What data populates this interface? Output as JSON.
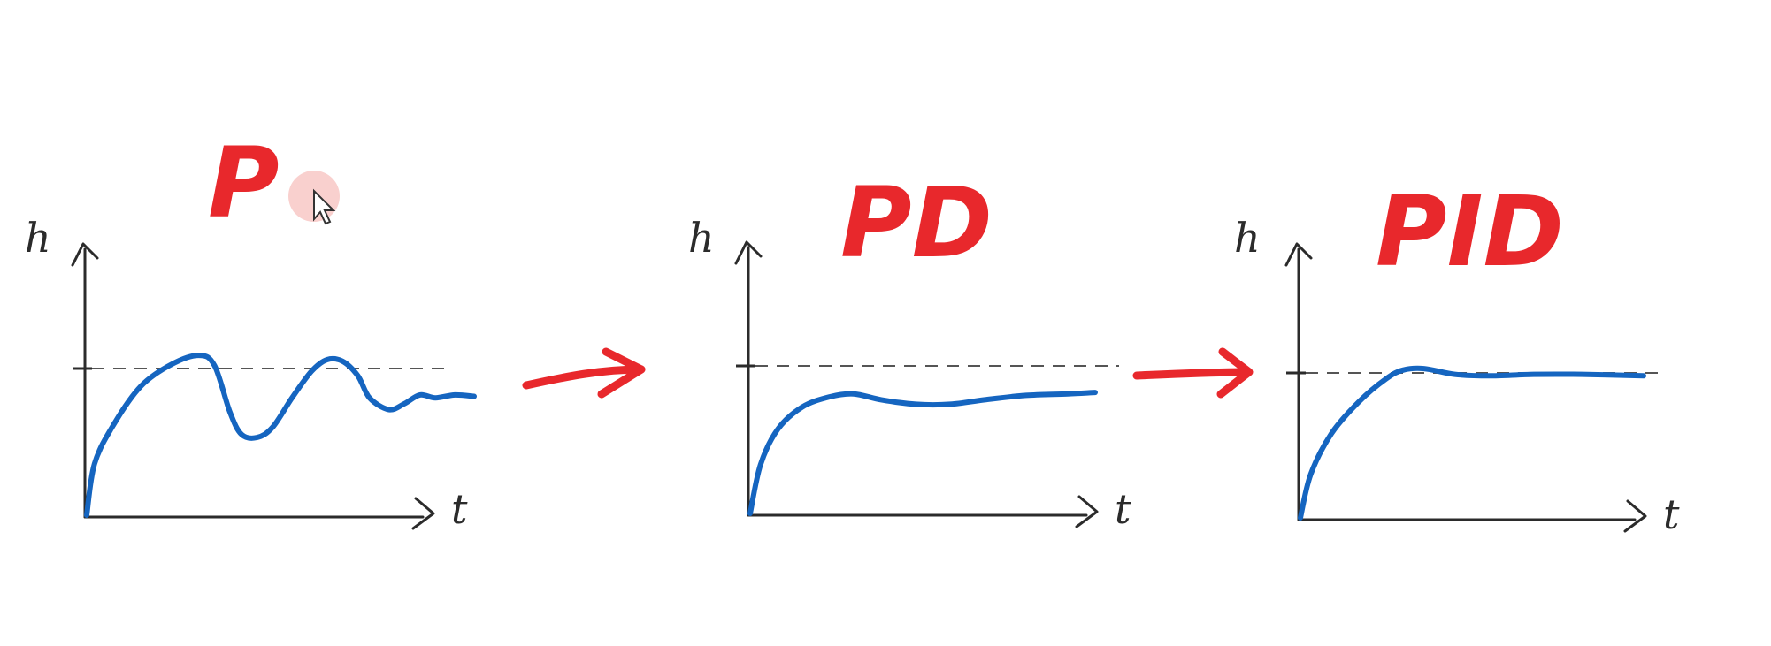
{
  "colors": {
    "title": "#e8282c",
    "curve": "#1565c0",
    "arrow": "#e8282c",
    "cursor_highlight": "#f4a9a6"
  },
  "panels": [
    {
      "title": "P",
      "ylabel": "h",
      "xlabel": "t",
      "response": [
        [
          0,
          0
        ],
        [
          0.02,
          0.35
        ],
        [
          0.07,
          0.62
        ],
        [
          0.14,
          0.88
        ],
        [
          0.22,
          1.03
        ],
        [
          0.29,
          1.09
        ],
        [
          0.33,
          1.02
        ],
        [
          0.37,
          0.7
        ],
        [
          0.4,
          0.55
        ],
        [
          0.44,
          0.53
        ],
        [
          0.48,
          0.6
        ],
        [
          0.53,
          0.8
        ],
        [
          0.58,
          0.98
        ],
        [
          0.62,
          1.06
        ],
        [
          0.66,
          1.05
        ],
        [
          0.7,
          0.95
        ],
        [
          0.73,
          0.8
        ],
        [
          0.78,
          0.72
        ],
        [
          0.82,
          0.76
        ],
        [
          0.86,
          0.82
        ],
        [
          0.9,
          0.8
        ],
        [
          0.95,
          0.82
        ],
        [
          1.0,
          0.81
        ]
      ]
    },
    {
      "title": "PD",
      "ylabel": "h",
      "xlabel": "t",
      "response": [
        [
          0,
          0
        ],
        [
          0.03,
          0.33
        ],
        [
          0.08,
          0.57
        ],
        [
          0.15,
          0.72
        ],
        [
          0.23,
          0.79
        ],
        [
          0.3,
          0.81
        ],
        [
          0.38,
          0.77
        ],
        [
          0.48,
          0.74
        ],
        [
          0.58,
          0.74
        ],
        [
          0.68,
          0.77
        ],
        [
          0.8,
          0.8
        ],
        [
          0.92,
          0.81
        ],
        [
          1.0,
          0.82
        ]
      ]
    },
    {
      "title": "PID",
      "ylabel": "h",
      "xlabel": "t",
      "response": [
        [
          0,
          0
        ],
        [
          0.03,
          0.3
        ],
        [
          0.09,
          0.58
        ],
        [
          0.17,
          0.8
        ],
        [
          0.25,
          0.96
        ],
        [
          0.3,
          1.02
        ],
        [
          0.36,
          1.03
        ],
        [
          0.45,
          0.99
        ],
        [
          0.55,
          0.98
        ],
        [
          0.68,
          0.99
        ],
        [
          0.82,
          0.99
        ],
        [
          1.0,
          0.98
        ]
      ]
    }
  ]
}
